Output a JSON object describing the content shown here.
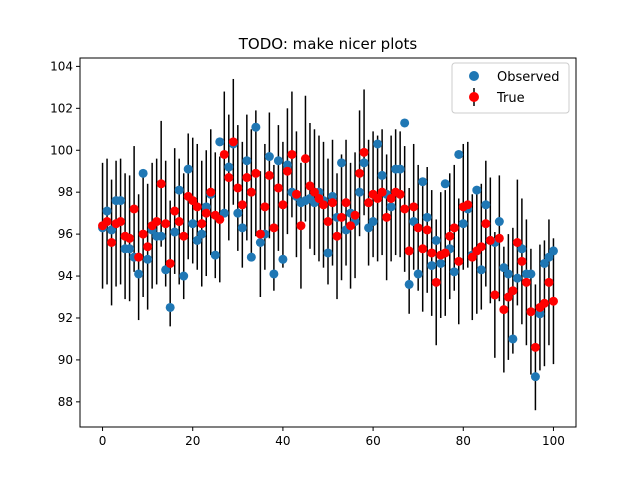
{
  "chart_data": {
    "type": "scatter",
    "title": "TODO: make nicer plots",
    "xlabel": "",
    "ylabel": "",
    "xlim": [
      -5,
      105
    ],
    "ylim": [
      86.8,
      104.4
    ],
    "x_ticks": [
      0,
      20,
      40,
      60,
      80,
      100
    ],
    "y_ticks": [
      88,
      90,
      92,
      94,
      96,
      98,
      100,
      102,
      104
    ],
    "grid": false,
    "legend_position": "top-right",
    "x": [
      0,
      1,
      2,
      3,
      4,
      5,
      6,
      7,
      8,
      9,
      10,
      11,
      12,
      13,
      14,
      15,
      16,
      17,
      18,
      19,
      20,
      21,
      22,
      23,
      24,
      25,
      26,
      27,
      28,
      29,
      30,
      31,
      32,
      33,
      34,
      35,
      36,
      37,
      38,
      39,
      40,
      41,
      42,
      43,
      44,
      45,
      46,
      47,
      48,
      49,
      50,
      51,
      52,
      53,
      54,
      55,
      56,
      57,
      58,
      59,
      60,
      61,
      62,
      63,
      64,
      65,
      66,
      67,
      68,
      69,
      70,
      71,
      72,
      73,
      74,
      75,
      76,
      77,
      78,
      79,
      80,
      81,
      82,
      83,
      84,
      85,
      86,
      87,
      88,
      89,
      90,
      91,
      92,
      93,
      94,
      95,
      96,
      97,
      98,
      99,
      100
    ],
    "series": [
      {
        "name": "Observed",
        "color": "#1f77b4",
        "marker": "circle",
        "values": [
          96.3,
          97.1,
          96.2,
          97.6,
          97.6,
          95.3,
          95.3,
          94.9,
          94.1,
          98.9,
          94.8,
          96.2,
          95.9,
          95.9,
          94.3,
          92.5,
          96.1,
          98.1,
          94.0,
          99.1,
          96.5,
          95.7,
          96.0,
          97.3,
          97.9,
          95.0,
          100.4,
          97.0,
          99.2,
          100.3,
          97.0,
          96.3,
          99.5,
          94.9,
          101.1,
          95.6,
          96.0,
          99.7,
          94.1,
          99.5,
          94.8,
          99.3,
          98.0,
          97.8,
          97.5,
          97.6,
          97.7,
          97.5,
          98.0,
          97.6,
          95.1,
          97.8,
          96.8,
          99.4,
          96.2,
          97.0,
          96.6,
          98.0,
          99.4,
          96.3,
          96.6,
          100.3,
          98.8,
          97.9,
          97.3,
          99.1,
          99.1,
          101.3,
          93.6,
          96.6,
          94.1,
          98.5,
          96.8,
          94.5,
          95.7,
          94.6,
          98.4,
          95.3,
          94.2,
          99.8,
          96.5,
          97.2,
          95.0,
          98.1,
          94.3,
          97.4,
          95.7,
          95.6,
          96.6,
          94.4,
          94.1,
          91.0,
          93.9,
          95.3,
          94.1,
          94.1,
          89.2,
          92.2,
          94.6,
          94.9,
          95.2
        ]
      },
      {
        "name": "True",
        "color": "#ff0000",
        "marker": "circle",
        "errorbar_halfwidth": 3,
        "values": [
          96.4,
          96.6,
          95.6,
          96.5,
          96.6,
          95.9,
          95.8,
          97.2,
          94.9,
          96.0,
          95.4,
          96.4,
          96.6,
          98.4,
          96.5,
          94.6,
          97.1,
          96.6,
          95.9,
          97.8,
          97.6,
          97.3,
          96.5,
          97.0,
          98.0,
          96.9,
          96.7,
          99.8,
          98.7,
          100.4,
          98.2,
          97.4,
          98.7,
          98.0,
          98.9,
          96.0,
          97.3,
          98.8,
          96.3,
          98.2,
          97.4,
          99.0,
          99.8,
          97.9,
          96.4,
          99.6,
          98.3,
          98.0,
          97.7,
          97.4,
          96.6,
          97.5,
          95.9,
          96.8,
          97.5,
          96.4,
          96.9,
          98.9,
          99.9,
          97.5,
          97.9,
          97.7,
          98.0,
          96.8,
          97.7,
          98.0,
          97.9,
          97.2,
          95.2,
          97.3,
          96.3,
          95.3,
          96.2,
          95.1,
          93.7,
          95.0,
          95.1,
          95.9,
          96.3,
          94.7,
          97.3,
          97.4,
          94.9,
          95.2,
          95.4,
          96.5,
          95.7,
          93.1,
          95.8,
          92.4,
          93.0,
          93.3,
          95.6,
          94.7,
          93.7,
          92.3,
          90.6,
          92.5,
          92.7,
          93.7,
          92.8
        ]
      }
    ]
  }
}
